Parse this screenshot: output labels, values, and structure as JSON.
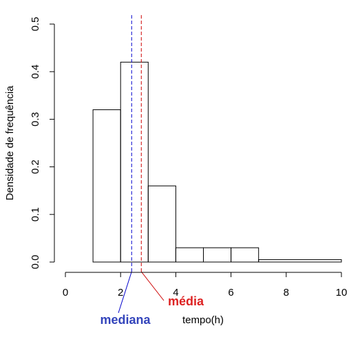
{
  "chart_data": {
    "type": "bar",
    "subtype": "histogram",
    "bins": [
      {
        "from": 1,
        "to": 2,
        "density": 0.32
      },
      {
        "from": 2,
        "to": 3,
        "density": 0.42
      },
      {
        "from": 3,
        "to": 4,
        "density": 0.16
      },
      {
        "from": 4,
        "to": 5,
        "density": 0.03
      },
      {
        "from": 5,
        "to": 6,
        "density": 0.03
      },
      {
        "from": 6,
        "to": 7,
        "density": 0.03
      },
      {
        "from": 7,
        "to": 10,
        "density": 0.005
      }
    ],
    "xlabel": "tempo(h)",
    "ylabel": "Densidade de frequência",
    "xlim": [
      0,
      10
    ],
    "ylim": [
      0,
      0.5
    ],
    "x_ticks": [
      "0",
      "2",
      "4",
      "6",
      "8",
      "10"
    ],
    "y_ticks": [
      "0.0",
      "0.1",
      "0.2",
      "0.3",
      "0.4",
      "0.5"
    ],
    "grid": false,
    "reference_lines": [
      {
        "name": "mediana",
        "x": 2.4,
        "color": "#0000cc",
        "label_color": "#3344bb",
        "style": "dashed"
      },
      {
        "name": "média",
        "x": 2.75,
        "color": "#cc0000",
        "label_color": "#dd2222",
        "style": "dashed"
      }
    ],
    "annotations": {
      "median_label": "mediana",
      "mean_label": "média"
    }
  }
}
